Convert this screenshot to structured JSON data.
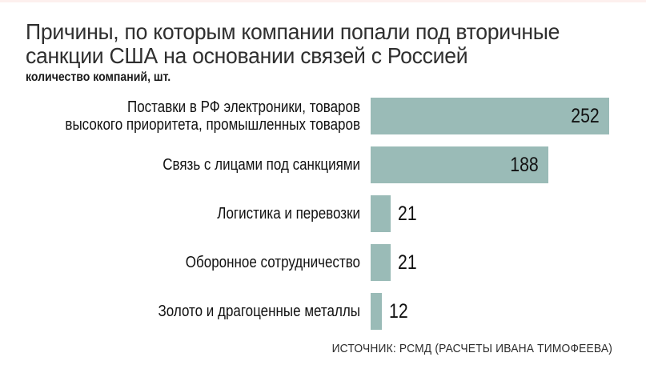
{
  "header": {
    "title": "Причины, по которым компании попали под вторичные санкции США на основании связей с Россией",
    "title_lines": [
      "Причины, по которым компании попали под вторичные",
      "санкции США на основании связей с Россией"
    ],
    "subtitle": "количество компаний, шт."
  },
  "chart_data": {
    "type": "bar",
    "orientation": "horizontal",
    "title": "Причины, по которым компании попали под вторичные санкции США на основании связей с Россией",
    "unit_label": "количество компаний, шт.",
    "categories": [
      "Поставки в РФ электроники, товаров высокого приоритета, промышленных товаров",
      "Связь с лицами под санкциями",
      "Логистика и перевозки",
      "Оборонное сотрудничество",
      "Золото и драгоценные металлы"
    ],
    "category_lines": [
      [
        "Поставки в РФ электроники, товаров",
        "высокого приоритета, промышленных товаров"
      ],
      [
        "Связь с лицами под санкциями"
      ],
      [
        "Логистика и перевозки"
      ],
      [
        "Оборонное сотрудничество"
      ],
      [
        "Золото и драгоценные металлы"
      ]
    ],
    "values": [
      252,
      188,
      21,
      21,
      12
    ],
    "xlim": [
      0,
      252
    ],
    "grid": false,
    "legend": false,
    "bar_color": "#9abbb7",
    "value_label_color": "#111111",
    "value_inside_threshold": 60
  },
  "footer": {
    "source": "ИСТОЧНИК: РСМД (РАСЧЕТЫ ИВАНА ТИМОФЕЕВА)"
  }
}
